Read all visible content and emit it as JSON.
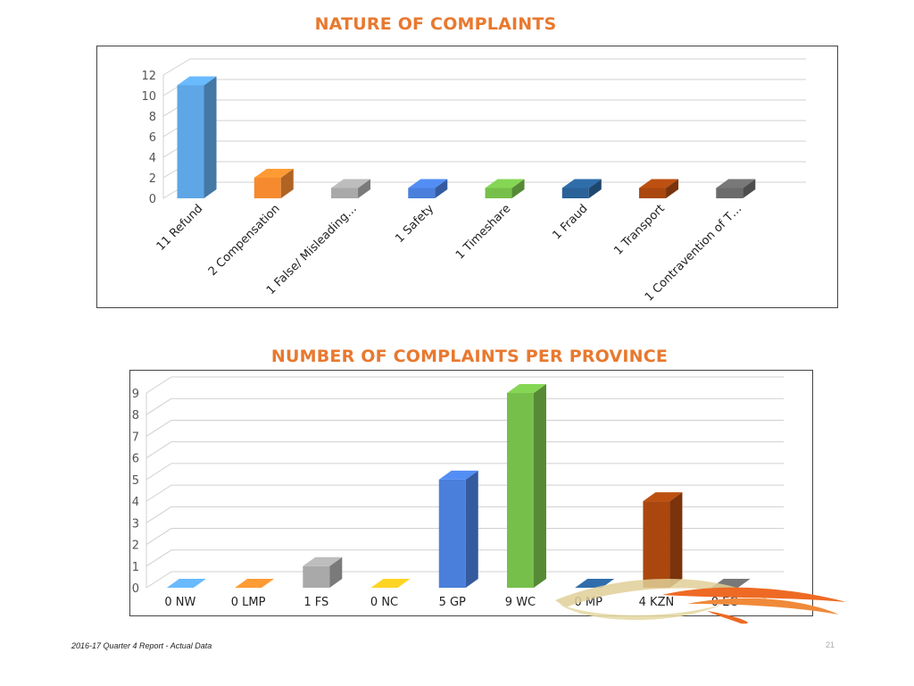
{
  "footer": {
    "report_label": "2016-17 Quarter 4 Report - Actual Data",
    "page_number": "21"
  },
  "chart_data": [
    {
      "type": "bar",
      "title": "NATURE OF COMPLAINTS",
      "categories": [
        "11 Refund",
        "2 Compensation",
        "1 False/ Misleading…",
        "1 Safety",
        "1 Timeshare",
        "1 Fraud",
        "1 Transport",
        "1 Contravention of T…"
      ],
      "values": [
        11,
        2,
        1,
        1,
        1,
        1,
        1,
        1
      ],
      "colors": [
        "#5ea6e5",
        "#f58a2f",
        "#a9a9a9",
        "#4a7fdb",
        "#77bf4b",
        "#2a6299",
        "#a9470f",
        "#6b6b6b"
      ],
      "ylim": [
        0,
        12
      ],
      "yticks": [
        0,
        2,
        4,
        6,
        8,
        10,
        12
      ],
      "xlabel": "",
      "ylabel": "",
      "grid": true
    },
    {
      "type": "bar",
      "title": "NUMBER OF COMPLAINTS PER PROVINCE",
      "categories": [
        "0 NW",
        "0 LMP",
        "1 FS",
        "0 NC",
        "5 GP",
        "9 WC",
        "0 MP",
        "4 KZN",
        "0 EC"
      ],
      "values": [
        0,
        0,
        1,
        0,
        5,
        9,
        0,
        4,
        0
      ],
      "colors": [
        "#5ea6e5",
        "#f58a2f",
        "#a9a9a9",
        "#f5bd1f",
        "#4a7fdb",
        "#77bf4b",
        "#2a6299",
        "#a9470f",
        "#6b6b6b"
      ],
      "ylim": [
        0,
        9
      ],
      "yticks": [
        0,
        1,
        2,
        3,
        4,
        5,
        6,
        7,
        8,
        9
      ],
      "xlabel": "",
      "ylabel": "",
      "grid": true
    }
  ]
}
